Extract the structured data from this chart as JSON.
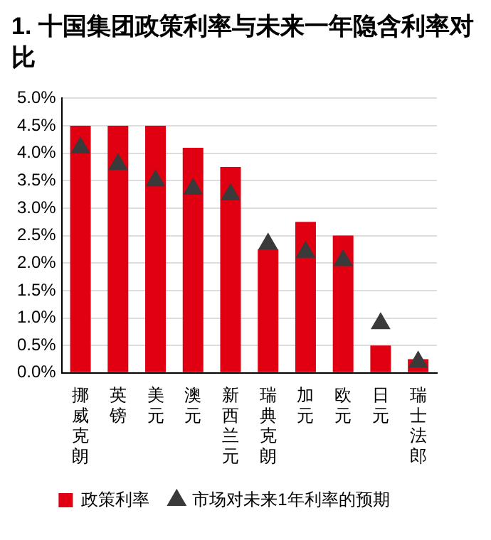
{
  "chart_data": {
    "type": "bar",
    "title": "1. 十国集团政策利率与未来一年隐含利率对比",
    "categories": [
      "挪威克朗",
      "英镑",
      "美元",
      "澳元",
      "新西兰元",
      "瑞典克朗",
      "加元",
      "欧元",
      "日元",
      "瑞士法郎"
    ],
    "series": [
      {
        "name": "政策利率",
        "color": "#e00012",
        "values": [
          4.5,
          4.5,
          4.5,
          4.1,
          3.75,
          2.25,
          2.75,
          2.5,
          0.5,
          0.25
        ]
      },
      {
        "name": "市场对未来1年利率的预期",
        "type": "scatter",
        "marker": "triangle",
        "color": "#3a3a3a",
        "values": [
          4.1,
          3.8,
          3.5,
          3.35,
          3.25,
          2.35,
          2.2,
          2.05,
          0.9,
          0.2
        ]
      }
    ],
    "ylim": [
      0,
      5
    ],
    "yticks": [
      {
        "value": 0,
        "label": "0.0%"
      },
      {
        "value": 0.5,
        "label": "0.5%"
      },
      {
        "value": 1,
        "label": "1.0%"
      },
      {
        "value": 1.5,
        "label": "1.5%"
      },
      {
        "value": 2,
        "label": "2.0%"
      },
      {
        "value": 2.5,
        "label": "2.5%"
      },
      {
        "value": 3,
        "label": "3.0%"
      },
      {
        "value": 3.5,
        "label": "3.5%"
      },
      {
        "value": 4,
        "label": "4.0%"
      },
      {
        "value": 4.5,
        "label": "4.5%"
      },
      {
        "value": 5,
        "label": "5.0%"
      }
    ],
    "grid": "y",
    "legend": "bottom"
  }
}
